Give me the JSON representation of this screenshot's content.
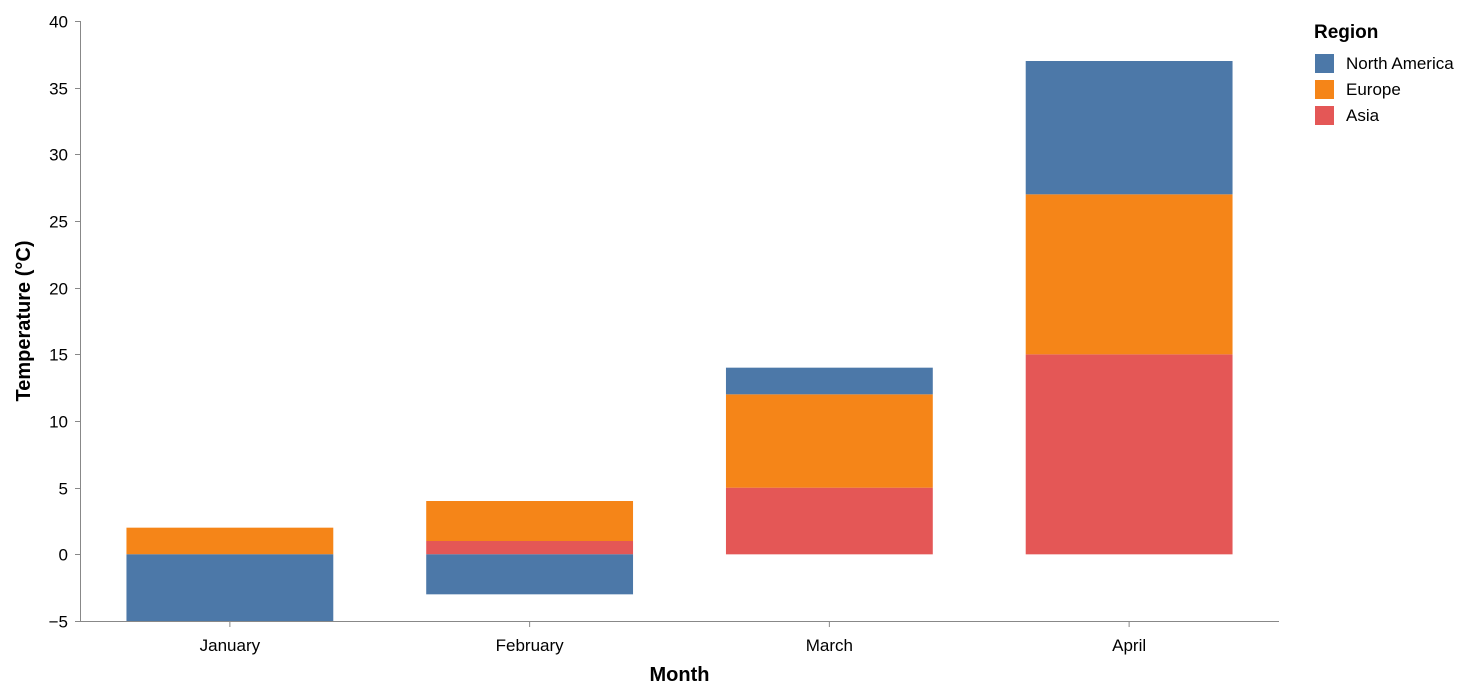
{
  "chart_data": {
    "type": "bar",
    "stacked": true,
    "categories": [
      "January",
      "February",
      "March",
      "April"
    ],
    "series": [
      {
        "name": "North America",
        "color": "#4c78a8",
        "values": [
          -5,
          -3,
          2,
          10
        ]
      },
      {
        "name": "Europe",
        "color": "#f58518",
        "values": [
          2,
          3,
          7,
          12
        ]
      },
      {
        "name": "Asia",
        "color": "#e45756",
        "values": [
          0,
          1,
          5,
          15
        ]
      }
    ],
    "stack_order": [
      "Asia",
      "Europe",
      "North America"
    ],
    "xlabel": "Month",
    "ylabel": "Temperature (°C)",
    "ylim": [
      -5,
      40
    ],
    "yticks": [
      -5,
      0,
      5,
      10,
      15,
      20,
      25,
      30,
      35,
      40
    ],
    "ytick_labels": [
      "−5",
      "0",
      "5",
      "10",
      "15",
      "20",
      "25",
      "30",
      "35",
      "40"
    ],
    "grid": false,
    "legend": {
      "title": "Region",
      "placement": "top-right",
      "entries": [
        "North America",
        "Europe",
        "Asia"
      ]
    }
  }
}
